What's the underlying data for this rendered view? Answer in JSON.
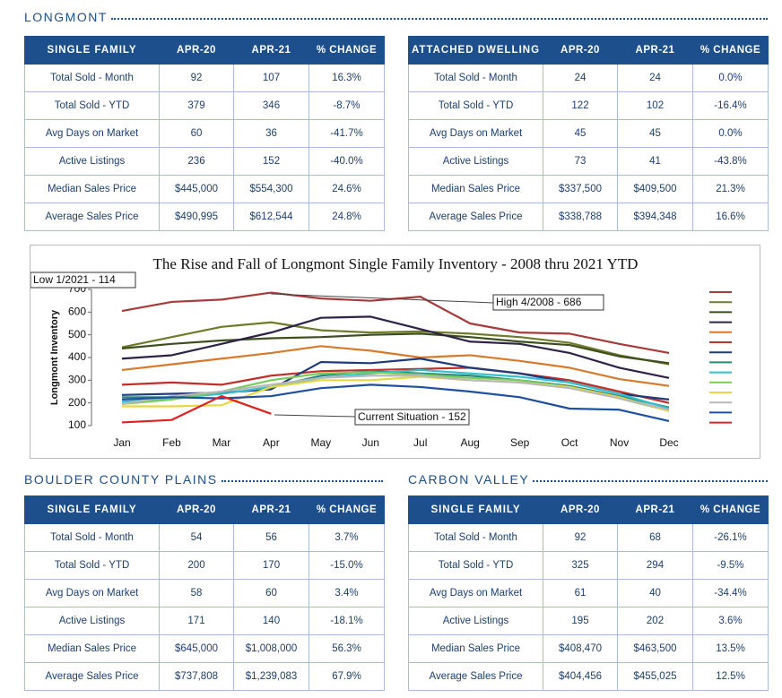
{
  "longmont": {
    "title": "LONGMONT",
    "tables": [
      {
        "header": [
          "SINGLE FAMILY",
          "APR-20",
          "APR-21",
          "% CHANGE"
        ],
        "rows": [
          [
            "Total Sold - Month",
            "92",
            "107",
            "16.3%"
          ],
          [
            "Total Sold - YTD",
            "379",
            "346",
            "-8.7%"
          ],
          [
            "Avg Days on Market",
            "60",
            "36",
            "-41.7%"
          ],
          [
            "Active Listings",
            "236",
            "152",
            "-40.0%"
          ],
          [
            "Median Sales Price",
            "$445,000",
            "$554,300",
            "24.6%"
          ],
          [
            "Average Sales Price",
            "$490,995",
            "$612,544",
            "24.8%"
          ]
        ]
      },
      {
        "header": [
          "ATTACHED DWELLING",
          "APR-20",
          "APR-21",
          "% CHANGE"
        ],
        "rows": [
          [
            "Total Sold - Month",
            "24",
            "24",
            "0.0%"
          ],
          [
            "Total Sold - YTD",
            "122",
            "102",
            "-16.4%"
          ],
          [
            "Avg Days on Market",
            "45",
            "45",
            "0.0%"
          ],
          [
            "Active Listings",
            "73",
            "41",
            "-43.8%"
          ],
          [
            "Median Sales Price",
            "$337,500",
            "$409,500",
            "21.3%"
          ],
          [
            "Average Sales Price",
            "$338,788",
            "$394,348",
            "16.6%"
          ]
        ]
      }
    ]
  },
  "chart_data": {
    "type": "line",
    "title": "The Rise and Fall of Longmont Single Family Inventory - 2008 thru 2021 YTD",
    "y_label": "Longmont Inventory",
    "categories": [
      "Jan",
      "Feb",
      "Mar",
      "Apr",
      "May",
      "Jun",
      "Jul",
      "Aug",
      "Sep",
      "Oct",
      "Nov",
      "Dec"
    ],
    "ylim": [
      100,
      700
    ],
    "yticks": [
      100,
      200,
      300,
      400,
      500,
      600,
      700
    ],
    "annotations": [
      "Low 1/2021 - 114",
      "High 4/2008 - 686",
      "Current Situation - 152"
    ],
    "series": [
      {
        "color": "#a83a3a",
        "values": [
          605,
          645,
          655,
          686,
          660,
          650,
          668,
          550,
          510,
          505,
          460,
          420
        ]
      },
      {
        "color": "#6f7a2a",
        "values": [
          445,
          490,
          535,
          555,
          520,
          510,
          515,
          505,
          490,
          465,
          410,
          370
        ]
      },
      {
        "color": "#3b4f1c",
        "values": [
          440,
          460,
          475,
          485,
          490,
          500,
          505,
          490,
          470,
          455,
          405,
          375
        ]
      },
      {
        "color": "#2e2248",
        "values": [
          395,
          410,
          460,
          510,
          575,
          580,
          525,
          470,
          460,
          420,
          355,
          310
        ]
      },
      {
        "color": "#d97a2a",
        "values": [
          345,
          370,
          395,
          420,
          450,
          430,
          400,
          410,
          385,
          355,
          305,
          275
        ]
      },
      {
        "color": "#c0302a",
        "values": [
          280,
          290,
          280,
          320,
          340,
          345,
          350,
          355,
          330,
          300,
          250,
          200
        ]
      },
      {
        "color": "#1f3a7a",
        "values": [
          235,
          240,
          245,
          260,
          380,
          375,
          395,
          355,
          330,
          290,
          240,
          215
        ]
      },
      {
        "color": "#2a8a7a",
        "values": [
          225,
          225,
          240,
          270,
          320,
          340,
          330,
          320,
          300,
          275,
          230,
          180
        ]
      },
      {
        "color": "#35c0d0",
        "values": [
          205,
          220,
          240,
          270,
          310,
          330,
          345,
          330,
          315,
          290,
          240,
          175
        ]
      },
      {
        "color": "#7acb5a",
        "values": [
          195,
          215,
          250,
          300,
          330,
          335,
          325,
          310,
          300,
          270,
          220,
          165
        ]
      },
      {
        "color": "#e8d840",
        "values": [
          185,
          185,
          190,
          270,
          300,
          300,
          315,
          300,
          290,
          270,
          225,
          165
        ]
      },
      {
        "color": "#b8b8b8",
        "values": [
          195,
          230,
          250,
          280,
          310,
          320,
          320,
          300,
          290,
          265,
          220,
          170
        ]
      },
      {
        "color": "#1e4fa0",
        "values": [
          215,
          225,
          220,
          230,
          265,
          280,
          270,
          250,
          225,
          175,
          170,
          120
        ]
      },
      {
        "color": "#e02020",
        "values": [
          114,
          125,
          230,
          152,
          null,
          null,
          null,
          null,
          null,
          null,
          null,
          null
        ]
      }
    ]
  },
  "boulder_county_plains": {
    "title": "BOULDER COUNTY PLAINS",
    "tables": [
      {
        "header": [
          "SINGLE FAMILY",
          "APR-20",
          "APR-21",
          "% CHANGE"
        ],
        "rows": [
          [
            "Total Sold - Month",
            "54",
            "56",
            "3.7%"
          ],
          [
            "Total Sold - YTD",
            "200",
            "170",
            "-15.0%"
          ],
          [
            "Avg Days on Market",
            "58",
            "60",
            "3.4%"
          ],
          [
            "Active Listings",
            "171",
            "140",
            "-18.1%"
          ],
          [
            "Median Sales Price",
            "$645,000",
            "$1,008,000",
            "56.3%"
          ],
          [
            "Average Sales Price",
            "$737,808",
            "$1,239,083",
            "67.9%"
          ]
        ]
      }
    ]
  },
  "carbon_valley": {
    "title": "CARBON VALLEY",
    "tables": [
      {
        "header": [
          "SINGLE FAMILY",
          "APR-20",
          "APR-21",
          "% CHANGE"
        ],
        "rows": [
          [
            "Total Sold - Month",
            "92",
            "68",
            "-26.1%"
          ],
          [
            "Total Sold - YTD",
            "325",
            "294",
            "-9.5%"
          ],
          [
            "Avg Days on Market",
            "61",
            "40",
            "-34.4%"
          ],
          [
            "Active Listings",
            "195",
            "202",
            "3.6%"
          ],
          [
            "Median Sales Price",
            "$408,470",
            "$463,500",
            "13.5%"
          ],
          [
            "Average Sales Price",
            "$404,456",
            "$455,025",
            "12.5%"
          ]
        ]
      }
    ]
  }
}
